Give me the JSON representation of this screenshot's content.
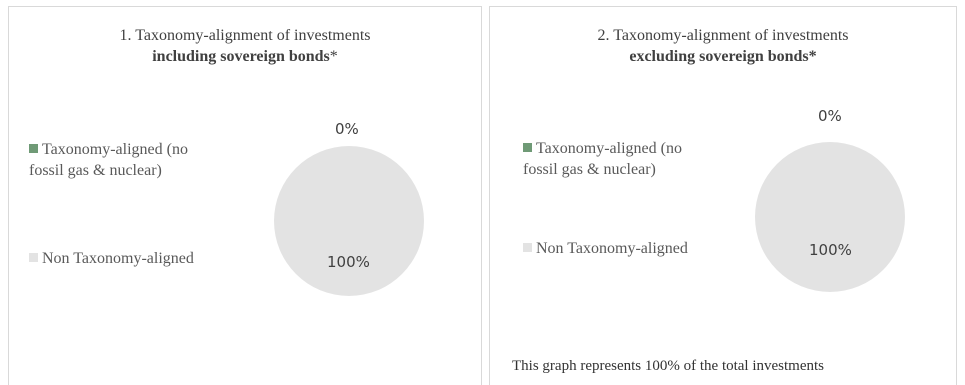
{
  "colors": {
    "aligned": "#6f9a76",
    "non_aligned": "#e3e3e3"
  },
  "chart_data": [
    {
      "type": "pie",
      "title": "1. Taxonomy-alignment of investments",
      "subtitle": "including sovereign bonds",
      "subtitle_suffix": "*",
      "categories": [
        "Taxonomy-aligned (no fossil gas & nuclear)",
        "Non Taxonomy-aligned"
      ],
      "values": [
        0,
        100
      ],
      "data_labels": [
        "0%",
        "100%"
      ],
      "legend_labels": [
        "Taxonomy-aligned (no",
        "fossil gas & nuclear)",
        "Non Taxonomy-aligned"
      ]
    },
    {
      "type": "pie",
      "title": "2. Taxonomy-alignment of investments",
      "subtitle": "excluding sovereign bonds*",
      "subtitle_suffix": "",
      "categories": [
        "Taxonomy-aligned (no fossil gas & nuclear)",
        "Non Taxonomy-aligned"
      ],
      "values": [
        0,
        100
      ],
      "data_labels": [
        "0%",
        "100%"
      ],
      "legend_labels": [
        "Taxonomy-aligned (no",
        "fossil gas & nuclear)",
        "Non Taxonomy-aligned"
      ],
      "note": "This graph represents 100% of the total investments"
    }
  ]
}
